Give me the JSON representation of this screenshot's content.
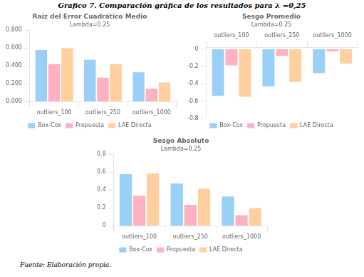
{
  "title": "Grafico  7. Comparación gráfica de los resultados para  λ =0,25",
  "annotations": [
    "Fuente: Elaboración propia."
  ],
  "chart_data": [
    {
      "type": "bar",
      "title": "Raíz del Error Cuadrático Medio",
      "subtitle": "Lambda=0.25",
      "categories": [
        "outliers_100",
        "outliers_250",
        "outliers_1000"
      ],
      "series": [
        {
          "name": "Box-Cox",
          "values": [
            0.58,
            0.47,
            0.33
          ]
        },
        {
          "name": "Propuesta",
          "values": [
            0.42,
            0.27,
            0.145
          ]
        },
        {
          "name": "LAE Directa",
          "values": [
            0.6,
            0.42,
            0.215
          ]
        }
      ],
      "ylim": [
        0.0,
        0.8
      ],
      "yticks": [
        {
          "value": 0,
          "label": "0.000"
        },
        {
          "value": 0.2,
          "label": "0.200"
        },
        {
          "value": 0.4,
          "label": "0.400"
        },
        {
          "value": 0.6,
          "label": "0.600"
        },
        {
          "value": 0.8,
          "label": "0.800"
        }
      ],
      "grid": false,
      "legend": "bottom"
    },
    {
      "type": "bar",
      "title": "Sesgo Promedio",
      "subtitle": "Lambda=0.25",
      "categories": [
        "outliers_100",
        "outliers_250",
        "outliers_1000"
      ],
      "series": [
        {
          "name": "Box-Cox",
          "values": [
            -0.54,
            -0.43,
            -0.28
          ]
        },
        {
          "name": "Propuesta",
          "values": [
            -0.19,
            -0.08,
            -0.03
          ]
        },
        {
          "name": "LAE Directa",
          "values": [
            -0.55,
            -0.38,
            -0.17
          ]
        }
      ],
      "ylim": [
        -0.8,
        0.02
      ],
      "yticks": [
        0,
        -0.2,
        -0.4,
        -0.6,
        -0.8
      ],
      "grid": false,
      "legend": "bottom"
    },
    {
      "type": "bar",
      "title": "Sesgo Absoluto",
      "subtitle": "Lambda=0.25",
      "categories": [
        "outliers_100",
        "outliers_250",
        "outliers_1000"
      ],
      "series": [
        {
          "name": "Box-Cox",
          "values": [
            0.58,
            0.475,
            0.33
          ]
        },
        {
          "name": "Propuesta",
          "values": [
            0.34,
            0.235,
            0.12
          ]
        },
        {
          "name": "LAE Directa",
          "values": [
            0.59,
            0.415,
            0.2
          ]
        }
      ],
      "ylim": [
        0.0,
        0.8
      ],
      "yticks": [
        0,
        0.2,
        0.4,
        0.6,
        0.8
      ],
      "grid": false,
      "legend": "bottom"
    }
  ]
}
